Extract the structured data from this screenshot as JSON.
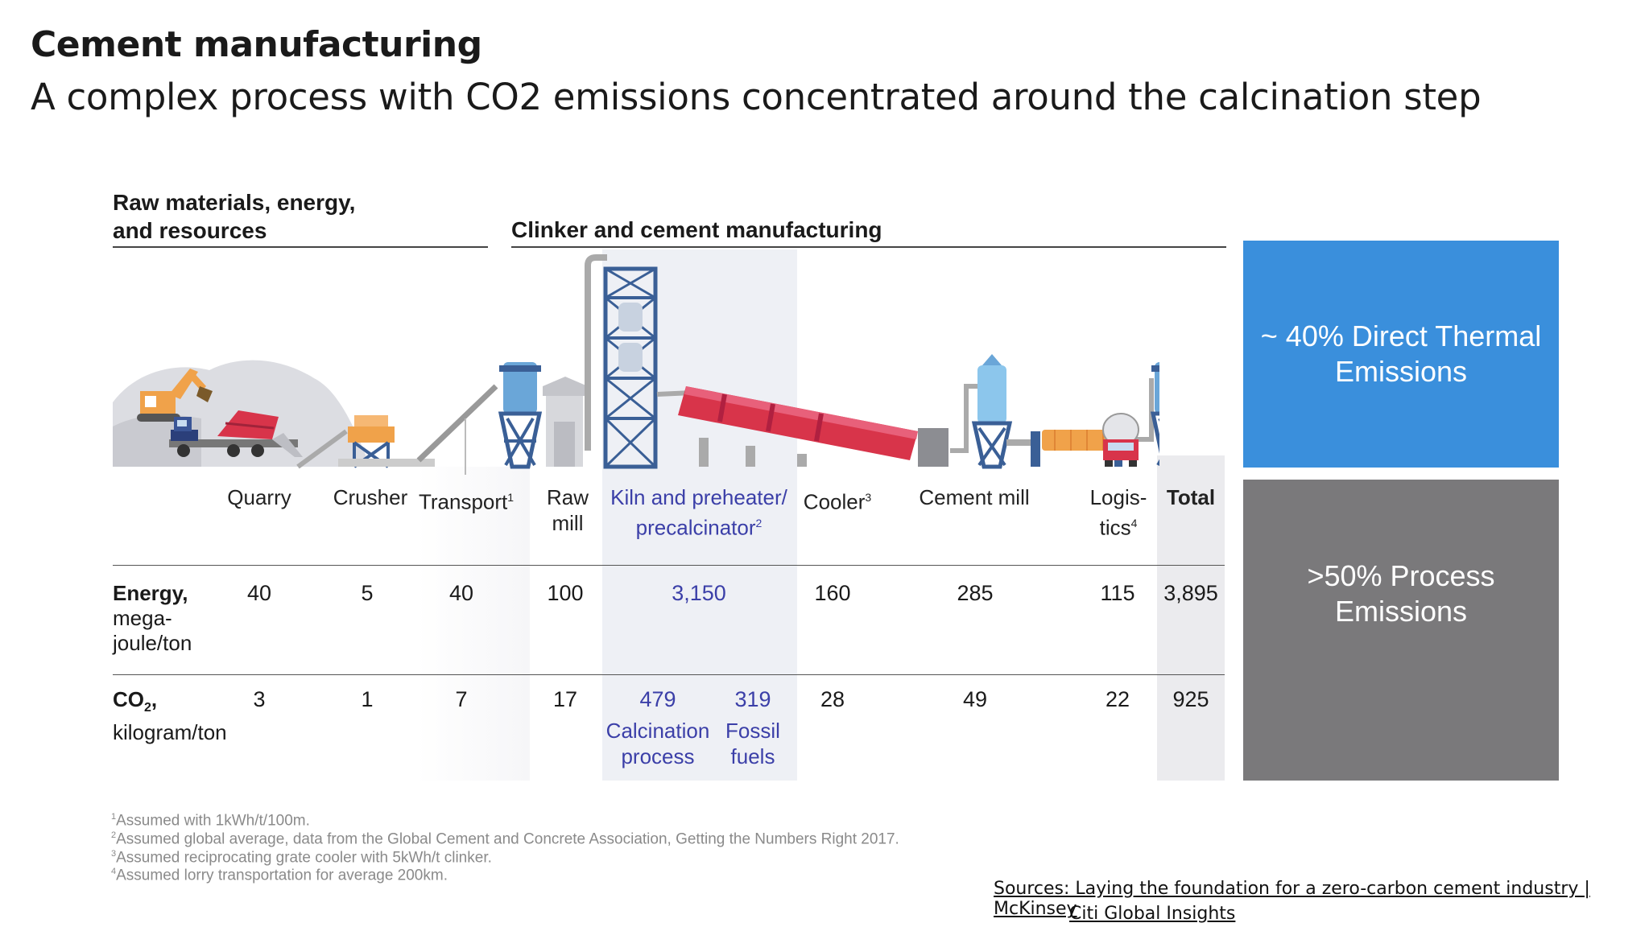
{
  "title": "Cement manufacturing",
  "subtitle": "A complex process with CO2 emissions concentrated around the calcination step",
  "sections": {
    "raw_materials": [
      "Raw materials, energy,",
      "and resources"
    ],
    "clinker": "Clinker and cement manufacturing"
  },
  "steps": {
    "quarry": "Quarry",
    "crusher": "Crusher",
    "transport": "Transport",
    "transport_fn": "1",
    "raw_mill_1": "Raw",
    "raw_mill_2": "mill",
    "kiln_1": "Kiln and preheater/",
    "kiln_2": "precalcinator",
    "kiln_fn": "2",
    "cooler": "Cooler",
    "cooler_fn": "3",
    "cement_mill": "Cement mill",
    "logistics_1": "Logis-",
    "logistics_2": "tics",
    "logistics_fn": "4",
    "total": "Total"
  },
  "energy_row": {
    "label_bold": "Energy,",
    "label_unit_1": "mega-",
    "label_unit_2": "joule/ton",
    "values": {
      "quarry": "40",
      "crusher": "5",
      "transport": "40",
      "raw_mill": "100",
      "kiln": "3,150",
      "cooler": "160",
      "cement_mill": "285",
      "logistics": "115",
      "total": "3,895"
    }
  },
  "co2_row": {
    "label_bold": "CO",
    "label_sub": "2",
    "label_comma": ",",
    "label_unit": "kilogram/ton",
    "values": {
      "quarry": "3",
      "crusher": "1",
      "transport": "7",
      "raw_mill": "17",
      "calcination": "479",
      "fossil": "319",
      "cooler": "28",
      "cement_mill": "49",
      "logistics": "22",
      "total": "925"
    },
    "calcination_label_1": "Calcination",
    "calcination_label_2": "process",
    "fossil_label_1": "Fossil",
    "fossil_label_2": "fuels"
  },
  "boxes": {
    "thermal_1": "~ 40% Direct Thermal",
    "thermal_2": "Emissions",
    "process_1": ">50% Process",
    "process_2": "Emissions"
  },
  "footnotes": {
    "n1": "1",
    "t1": "Assumed with 1kWh/t/100m.",
    "n2": "2",
    "t2": "Assumed global average, data from the Global Cement and Concrete Association, Getting the Numbers Right 2017.",
    "n3": "3",
    "t3": "Assumed reciprocating grate cooler with 5kWh/t clinker.",
    "n4": "4",
    "t4": "Assumed lorry transportation for average 200km."
  },
  "sources": {
    "line1": "Sources: Laying the foundation for a zero-carbon cement industry | McKinsey",
    "line2": "Citi Global Insights"
  },
  "colors": {
    "thermal_box": "#3a8fdc",
    "process_box": "#7a797b",
    "kiln_band": "#eef0f5",
    "total_band": "#ebebee",
    "value_blue": "#3b3fa8",
    "kiln_red": "#d8344a",
    "tower_blue": "#3a5f96"
  }
}
